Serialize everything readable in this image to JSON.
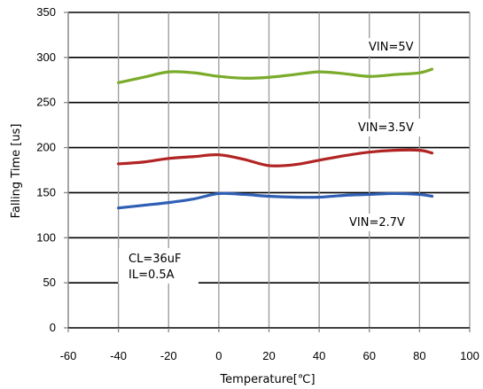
{
  "chart_data": {
    "type": "line",
    "xlabel": "Temperature[℃]",
    "ylabel": "Falling Time [us]",
    "xlim": [
      -60,
      100
    ],
    "ylim": [
      0,
      350
    ],
    "x_ticks": [
      "-60",
      "-40",
      "-20",
      "0",
      "20",
      "40",
      "60",
      "80",
      "100"
    ],
    "y_ticks": [
      "0",
      "50",
      "100",
      "150",
      "200",
      "250",
      "300",
      "350"
    ],
    "grid": true,
    "series": [
      {
        "name": "VIN=5V",
        "color": "#7aab2a",
        "x": [
          -40,
          -30,
          -20,
          -10,
          0,
          10,
          20,
          30,
          40,
          50,
          60,
          70,
          80,
          85
        ],
        "y": [
          272,
          278,
          284,
          283,
          279,
          277,
          278,
          281,
          284,
          282,
          279,
          281,
          283,
          287
        ]
      },
      {
        "name": "VIN=3.5V",
        "color": "#b22424",
        "x": [
          -40,
          -30,
          -20,
          -10,
          0,
          10,
          20,
          30,
          40,
          50,
          60,
          70,
          80,
          85
        ],
        "y": [
          182,
          184,
          188,
          190,
          192,
          187,
          180,
          181,
          186,
          191,
          195,
          197,
          197,
          194
        ]
      },
      {
        "name": "VIN=2.7V",
        "color": "#2f5fb5",
        "x": [
          -40,
          -30,
          -20,
          -10,
          0,
          10,
          20,
          30,
          40,
          50,
          60,
          70,
          80,
          85
        ],
        "y": [
          133,
          136,
          139,
          143,
          149,
          148,
          146,
          145,
          145,
          147,
          148,
          149,
          148,
          146
        ]
      }
    ],
    "annotations": [
      "CL=36uF",
      "IL=0.5A"
    ]
  }
}
